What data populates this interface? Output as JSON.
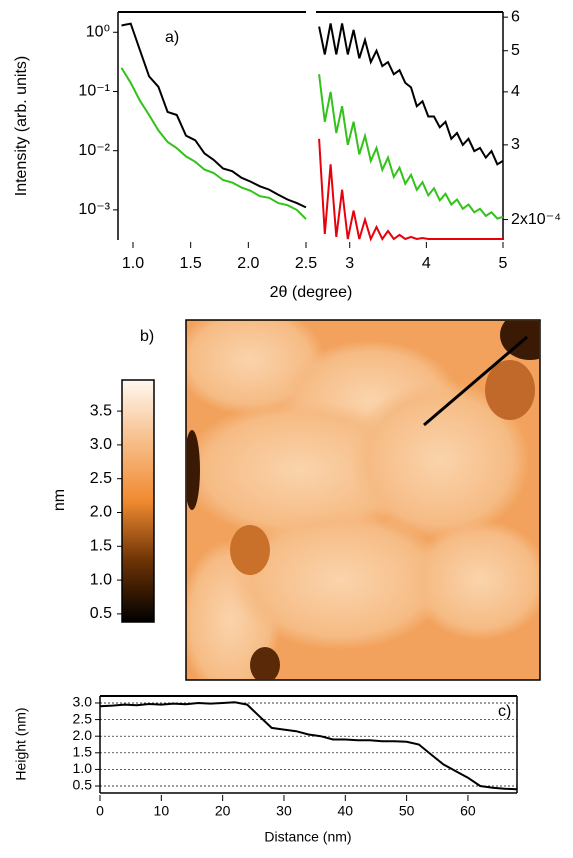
{
  "chart_data": [
    {
      "type": "line",
      "log_y": true,
      "annotation": "a)",
      "y_label": "Intensity (arb. units)",
      "x_label": "2θ (degree)",
      "xlim": [
        0.87,
        2.5
      ],
      "xticks": [
        {
          "value": 1,
          "label": "1.0"
        },
        1.5,
        {
          "value": 2,
          "label": "2.0"
        },
        2.5
      ],
      "ylim": [
        0.00031,
        2.2
      ],
      "yticks": [
        {
          "value": 1,
          "label": "10⁰"
        },
        {
          "value": 0.1,
          "label": "10⁻¹"
        },
        {
          "value": 0.01,
          "label": "10⁻²"
        },
        {
          "value": 0.001,
          "label": "10⁻³"
        }
      ],
      "x": [
        0.9,
        0.98,
        1.06,
        1.14,
        1.22,
        1.3,
        1.38,
        1.46,
        1.54,
        1.62,
        1.7,
        1.78,
        1.86,
        1.94,
        2.02,
        2.1,
        2.18,
        2.26,
        2.34,
        2.42,
        2.5
      ],
      "series": [
        {
          "color": "#000000",
          "values": [
            1.3,
            1.4,
            0.5,
            0.18,
            0.12,
            0.045,
            0.04,
            0.018,
            0.015,
            0.009,
            0.007,
            0.005,
            0.0045,
            0.0035,
            0.003,
            0.0025,
            0.0022,
            0.0018,
            0.0015,
            0.0013,
            0.0011
          ]
        },
        {
          "color": "#33c21a",
          "values": [
            0.25,
            0.14,
            0.07,
            0.04,
            0.022,
            0.014,
            0.011,
            0.008,
            0.0065,
            0.0048,
            0.0042,
            0.0032,
            0.0029,
            0.0024,
            0.0021,
            0.0017,
            0.0016,
            0.0013,
            0.0012,
            0.001,
            0.0007
          ]
        }
      ]
    },
    {
      "type": "line",
      "log_y": true,
      "y_axis_side": "right",
      "xlim": [
        2.56,
        5
      ],
      "xticks": [
        3,
        4,
        5
      ],
      "ylim": [
        0.000179,
        0.000617
      ],
      "yticks": [
        {
          "value": 0.0002,
          "label": "2x10⁻⁴"
        },
        {
          "value": 0.0003,
          "label": "3"
        },
        {
          "value": 0.0004,
          "label": "4"
        },
        {
          "value": 0.0005,
          "label": "5"
        },
        {
          "value": 0.0006,
          "label": "6"
        }
      ],
      "x": [
        2.6,
        2.675,
        2.75,
        2.825,
        2.9,
        2.975,
        3.05,
        3.125,
        3.2,
        3.275,
        3.35,
        3.425,
        3.5,
        3.575,
        3.65,
        3.725,
        3.8,
        3.875,
        3.95,
        4.025,
        4.1,
        4.175,
        4.25,
        4.325,
        4.4,
        4.475,
        4.55,
        4.625,
        4.7,
        4.775,
        4.85,
        4.925,
        5.0
      ],
      "series": [
        {
          "color": "#000000",
          "values": [
            0.00057,
            0.00049,
            0.00058,
            0.00049,
            0.00058,
            0.00049,
            0.00056,
            0.00048,
            0.00053,
            0.00047,
            0.0005,
            0.00046,
            0.00047,
            0.00044,
            0.00045,
            0.00042,
            0.00041,
            0.00037,
            0.00038,
            0.00035,
            0.00035,
            0.00033,
            0.00034,
            0.00031,
            0.00032,
            0.0003,
            0.00031,
            0.00029,
            0.000295,
            0.00028,
            0.00029,
            0.00027,
            0.000275
          ]
        },
        {
          "color": "#33c21a",
          "values": [
            0.00044,
            0.00034,
            0.0004,
            0.00032,
            0.00037,
            0.0003,
            0.00034,
            0.000285,
            0.000315,
            0.000275,
            0.000295,
            0.000262,
            0.00028,
            0.000252,
            0.000265,
            0.000243,
            0.000255,
            0.000235,
            0.000245,
            0.000228,
            0.000237,
            0.000222,
            0.00023,
            0.000217,
            0.000223,
            0.000212,
            0.000217,
            0.000208,
            0.000212,
            0.000204,
            0.000208,
            0.000201,
            0.000203
          ]
        },
        {
          "color": "#e8000b",
          "values": [
            0.00031,
            0.000185,
            0.00027,
            0.000182,
            0.000235,
            0.00018,
            0.00021,
            0.00018,
            0.0002,
            0.00018,
            0.000192,
            0.00018,
            0.000188,
            0.00018,
            0.000184,
            0.00018,
            0.000182,
            0.00018,
            0.000181,
            0.00018,
            0.00018,
            0.00018,
            0.00018,
            0.00018,
            0.00018,
            0.00018,
            0.00018,
            0.00018,
            0.00018,
            0.00018,
            0.00018,
            0.00018,
            0.00018
          ]
        }
      ]
    },
    {
      "type": "image",
      "annotation": "b)",
      "colorbar_label": "nm",
      "colorbar_lim": [
        0.38,
        3.96
      ],
      "colorbar_ticks": [
        0.5,
        {
          "value": 1,
          "label": "1.0"
        },
        1.5,
        {
          "value": 2,
          "label": "2.0"
        },
        2.5,
        {
          "value": 3,
          "label": "3.0"
        },
        3.5
      ]
    },
    {
      "type": "line",
      "annotation": "c)",
      "y_label": "Height (nm)",
      "x_label": "Distance (nm)",
      "grid": true,
      "xlim": [
        0,
        68
      ],
      "xticks": [
        0,
        10,
        20,
        30,
        40,
        50,
        60
      ],
      "ylim": [
        0.29,
        3.21
      ],
      "yticks": [
        {
          "value": 3,
          "label": "3.0"
        },
        2.5,
        {
          "value": 2,
          "label": "2.0"
        },
        1.5,
        {
          "value": 1,
          "label": "1.0"
        },
        0.5
      ],
      "x": [
        0,
        2,
        4,
        6,
        8,
        10,
        12,
        14,
        16,
        18,
        20,
        22,
        24,
        26,
        28,
        30,
        32,
        34,
        36,
        38,
        40,
        42,
        44,
        46,
        48,
        50,
        52,
        54,
        56,
        58,
        60,
        62,
        64,
        66,
        68
      ],
      "series": [
        {
          "color": "#000000",
          "values": [
            2.9,
            2.92,
            2.95,
            2.93,
            2.97,
            2.95,
            2.98,
            2.96,
            3.0,
            2.98,
            3.0,
            3.02,
            2.95,
            2.6,
            2.25,
            2.2,
            2.15,
            2.05,
            2.0,
            1.9,
            1.9,
            1.88,
            1.88,
            1.85,
            1.85,
            1.83,
            1.75,
            1.45,
            1.15,
            0.95,
            0.75,
            0.5,
            0.45,
            0.42,
            0.4
          ]
        }
      ]
    }
  ]
}
